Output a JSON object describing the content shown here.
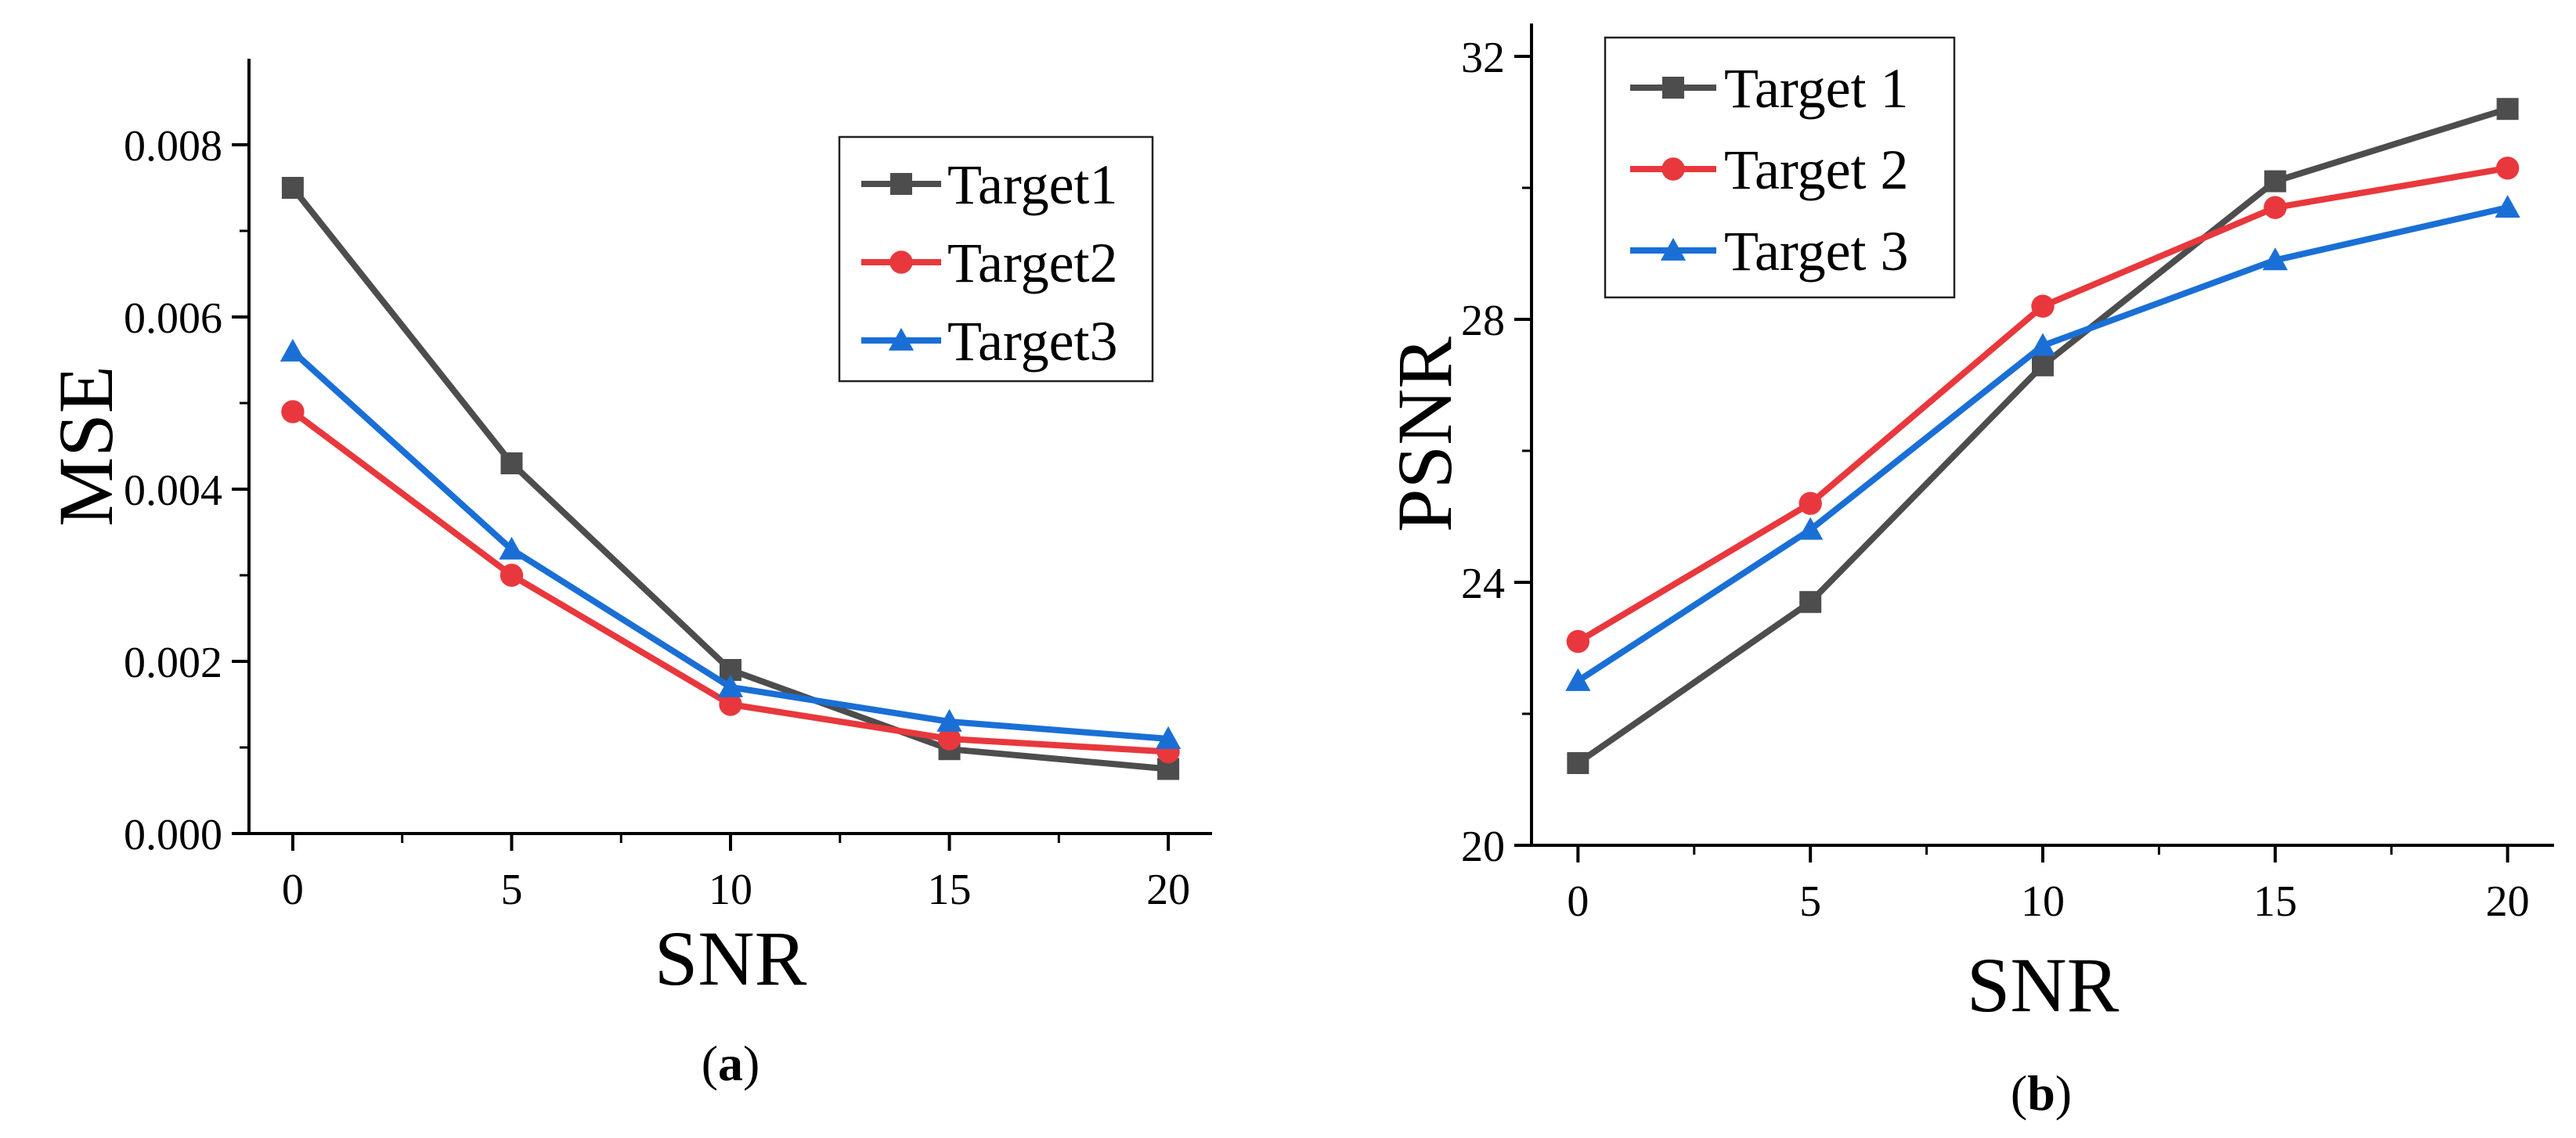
{
  "chart_data": [
    {
      "type": "line",
      "panel_caption": "(a)",
      "caption_letter": "a",
      "xlabel": "SNR",
      "ylabel": "MSE",
      "x": [
        0,
        5,
        10,
        15,
        20
      ],
      "xlim": [
        -1,
        21
      ],
      "ylim": [
        0,
        0.009
      ],
      "x_ticks": [
        0,
        5,
        10,
        15,
        20
      ],
      "x_tick_labels": [
        "0",
        "5",
        "10",
        "15",
        "20"
      ],
      "y_ticks": [
        0,
        0.002,
        0.004,
        0.006,
        0.008
      ],
      "y_tick_labels": [
        "0.000",
        "0.002",
        "0.004",
        "0.006",
        "0.008"
      ],
      "legend_position": "upper-right",
      "series": [
        {
          "name": "Target1",
          "color": "#4d4d4d",
          "marker": "square",
          "values": [
            0.0075,
            0.0043,
            0.0019,
            0.00098,
            0.00075
          ]
        },
        {
          "name": "Target2",
          "color": "#e8383d",
          "marker": "circle",
          "values": [
            0.0049,
            0.003,
            0.0015,
            0.0011,
            0.00095
          ]
        },
        {
          "name": "Target3",
          "color": "#1a6fd6",
          "marker": "triangle",
          "values": [
            0.0056,
            0.0033,
            0.0017,
            0.0013,
            0.0011
          ]
        }
      ]
    },
    {
      "type": "line",
      "panel_caption": "(b)",
      "caption_letter": "b",
      "xlabel": "SNR",
      "ylabel": "PSNR",
      "x": [
        0,
        5,
        10,
        15,
        20
      ],
      "xlim": [
        -1,
        21
      ],
      "ylim": [
        20,
        32.5
      ],
      "x_ticks": [
        0,
        5,
        10,
        15,
        20
      ],
      "x_tick_labels": [
        "0",
        "5",
        "10",
        "15",
        "20"
      ],
      "y_ticks": [
        20,
        24,
        28,
        32
      ],
      "y_tick_labels": [
        "20",
        "24",
        "28",
        "32"
      ],
      "legend_position": "upper-left",
      "series": [
        {
          "name": "Target 1",
          "color": "#4d4d4d",
          "marker": "square",
          "values": [
            21.25,
            23.7,
            27.3,
            30.1,
            31.2
          ]
        },
        {
          "name": "Target 2",
          "color": "#e8383d",
          "marker": "circle",
          "values": [
            23.1,
            25.2,
            28.2,
            29.7,
            30.3
          ]
        },
        {
          "name": "Target 3",
          "color": "#1a6fd6",
          "marker": "triangle",
          "values": [
            22.5,
            24.8,
            27.6,
            28.9,
            29.7
          ]
        }
      ]
    }
  ]
}
